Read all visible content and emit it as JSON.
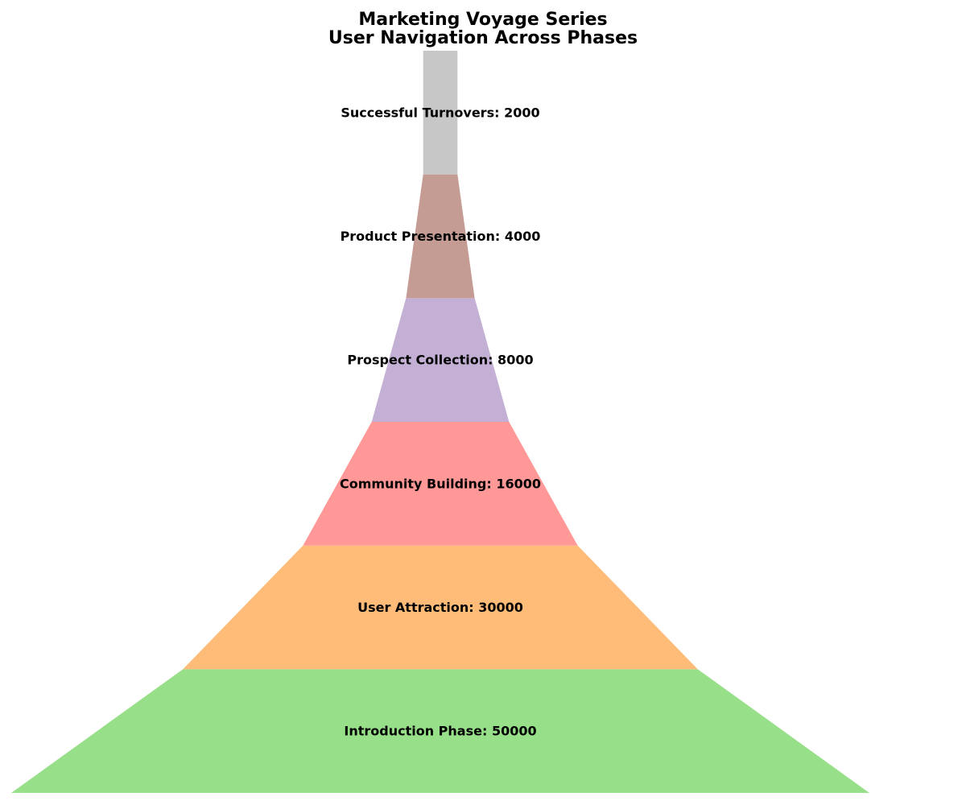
{
  "chart_data": {
    "type": "funnel",
    "title_lines": [
      "Marketing Voyage Series",
      "User Navigation Across Phases"
    ],
    "stages": [
      {
        "label": "Introduction Phase: 50000",
        "name": "Introduction Phase",
        "value": 50000,
        "color": "#98df8a"
      },
      {
        "label": "User Attraction: 30000",
        "name": "User Attraction",
        "value": 30000,
        "color": "#ffbb78"
      },
      {
        "label": "Community Building: 16000",
        "name": "Community Building",
        "value": 16000,
        "color": "#ff9896"
      },
      {
        "label": "Prospect Collection: 8000",
        "name": "Prospect Collection",
        "value": 8000,
        "color": "#c5b0d5"
      },
      {
        "label": "Product Presentation: 4000",
        "name": "Product Presentation",
        "value": 4000,
        "color": "#c49c94"
      },
      {
        "label": "Successful Turnovers: 2000",
        "name": "Successful Turnovers",
        "value": 2000,
        "color": "#c7c7c7"
      }
    ],
    "legend": "none",
    "grid": false
  }
}
